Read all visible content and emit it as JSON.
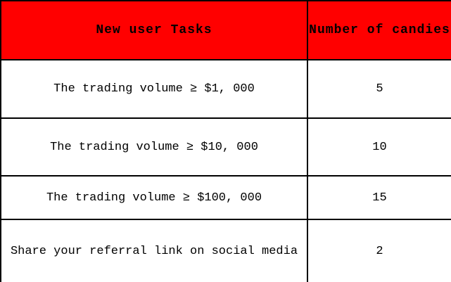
{
  "table": {
    "header": {
      "tasks": "New user Tasks",
      "candies": "Number of candies"
    },
    "rows": [
      {
        "task": "The trading volume ≥ $1, 000",
        "candies": "5"
      },
      {
        "task": "The trading volume ≥ $10, 000",
        "candies": "10"
      },
      {
        "task": "The trading volume ≥ $100, 000",
        "candies": "15"
      },
      {
        "task": "Share your referral link on social media",
        "candies": "2"
      }
    ]
  },
  "colors": {
    "header_bg": "#ff0000",
    "header_text": "#000000",
    "body_text": "#000000",
    "border": "#000000",
    "background": "#ffffff"
  }
}
